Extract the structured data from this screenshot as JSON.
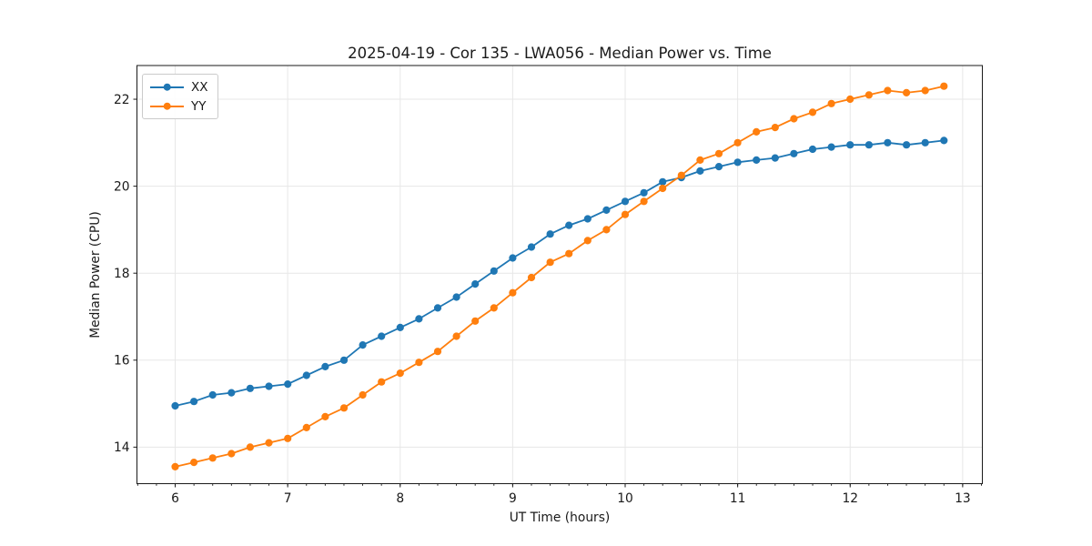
{
  "chart_data": {
    "type": "line",
    "title": "2025-04-19 - Cor 135 - LWA056 - Median Power vs. Time",
    "xlabel": "UT Time (hours)",
    "ylabel": "Median Power (CPU)",
    "x": [
      6.0,
      6.1667,
      6.3333,
      6.5,
      6.6667,
      6.8333,
      7.0,
      7.1667,
      7.3333,
      7.5,
      7.6667,
      7.8333,
      8.0,
      8.1667,
      8.3333,
      8.5,
      8.6667,
      8.8333,
      9.0,
      9.1667,
      9.3333,
      9.5,
      9.6667,
      9.8333,
      10.0,
      10.1667,
      10.3333,
      10.5,
      10.6667,
      10.8333,
      11.0,
      11.1667,
      11.3333,
      11.5,
      11.6667,
      11.8333,
      12.0,
      12.1667,
      12.3333,
      12.5,
      12.6667,
      12.8333
    ],
    "series": [
      {
        "name": "XX",
        "color": "#1f77b4",
        "values": [
          14.95,
          15.05,
          15.2,
          15.25,
          15.35,
          15.4,
          15.45,
          15.65,
          15.85,
          16.0,
          16.35,
          16.55,
          16.75,
          16.95,
          17.2,
          17.45,
          17.75,
          18.05,
          18.35,
          18.6,
          18.9,
          19.1,
          19.25,
          19.45,
          19.65,
          19.85,
          20.1,
          20.2,
          20.35,
          20.45,
          20.55,
          20.6,
          20.65,
          20.75,
          20.85,
          20.9,
          20.95,
          20.95,
          21.0,
          20.95,
          21.0,
          21.05
        ]
      },
      {
        "name": "YY",
        "color": "#ff7f0e",
        "values": [
          13.55,
          13.65,
          13.75,
          13.85,
          14.0,
          14.1,
          14.2,
          14.45,
          14.7,
          14.9,
          15.2,
          15.5,
          15.7,
          15.95,
          16.2,
          16.55,
          16.9,
          17.2,
          17.55,
          17.9,
          18.25,
          18.45,
          18.75,
          19.0,
          19.35,
          19.65,
          19.95,
          20.25,
          20.6,
          20.75,
          21.0,
          21.25,
          21.35,
          21.55,
          21.7,
          21.9,
          22.0,
          22.1,
          22.2,
          22.15,
          22.2,
          22.3
        ]
      }
    ],
    "xlim": [
      5.66,
      13.175
    ],
    "ylim": [
      13.16,
      22.775
    ],
    "x_ticks": [
      6,
      7,
      8,
      9,
      10,
      11,
      12,
      13
    ],
    "y_ticks": [
      14,
      16,
      18,
      20,
      22
    ],
    "x_minor_step": 0.166667,
    "grid": "major-only",
    "grid_color": "#e7e7e7",
    "axis_color": "#1a1a1a",
    "legend_position": "upper-left",
    "marker": "circle",
    "marker_radius": 4.1,
    "line_width": 1.8
  }
}
